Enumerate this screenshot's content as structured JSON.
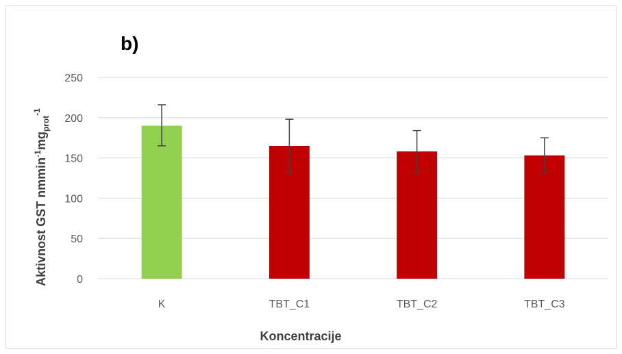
{
  "chart_data": {
    "type": "bar",
    "panel_label": "b)",
    "categories": [
      "K",
      "TBT_C1",
      "TBT_C2",
      "TBT_C3"
    ],
    "series": [
      {
        "values": [
          190,
          165,
          158,
          153
        ],
        "errors_low": [
          165,
          131,
          131,
          131
        ],
        "errors_high": [
          216,
          198,
          184,
          175
        ]
      }
    ],
    "bar_colors": [
      "#92d050",
      "#c00000",
      "#c00000",
      "#c00000"
    ],
    "error_bar_color": "#404040",
    "grid_color": "#d9d9d9",
    "xlabel": "Koncentracije",
    "ylabel": {
      "part1": "Aktivnost GST nmmin",
      "sup1": "-1",
      "part2": "mg",
      "sub": "prot",
      "sup2": "-1"
    },
    "yticks": [
      "0",
      "50",
      "100",
      "150",
      "200",
      "250"
    ],
    "ylim": [
      0,
      250
    ],
    "grid": true
  }
}
